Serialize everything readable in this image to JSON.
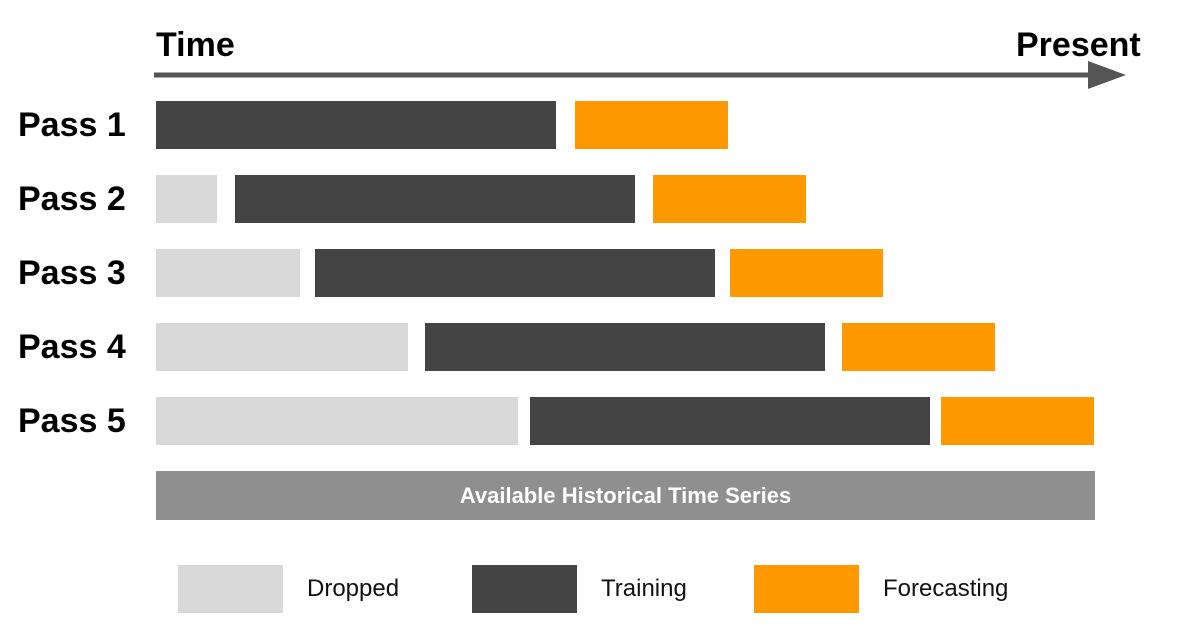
{
  "header": {
    "time_label": "Time",
    "present_label": "Present"
  },
  "colors": {
    "dropped": "#d9d9d9",
    "training": "#444444",
    "forecasting": "#ff9900",
    "arrow": "#555555",
    "history_bar": "#8f8f8f"
  },
  "passes": [
    {
      "label": "Pass 1"
    },
    {
      "label": "Pass 2"
    },
    {
      "label": "Pass 3"
    },
    {
      "label": "Pass 4"
    },
    {
      "label": "Pass 5"
    }
  ],
  "history_bar": {
    "label": "Available Historical Time Series"
  },
  "legend": {
    "dropped_label": "Dropped",
    "training_label": "Training",
    "forecasting_label": "Forecasting"
  }
}
